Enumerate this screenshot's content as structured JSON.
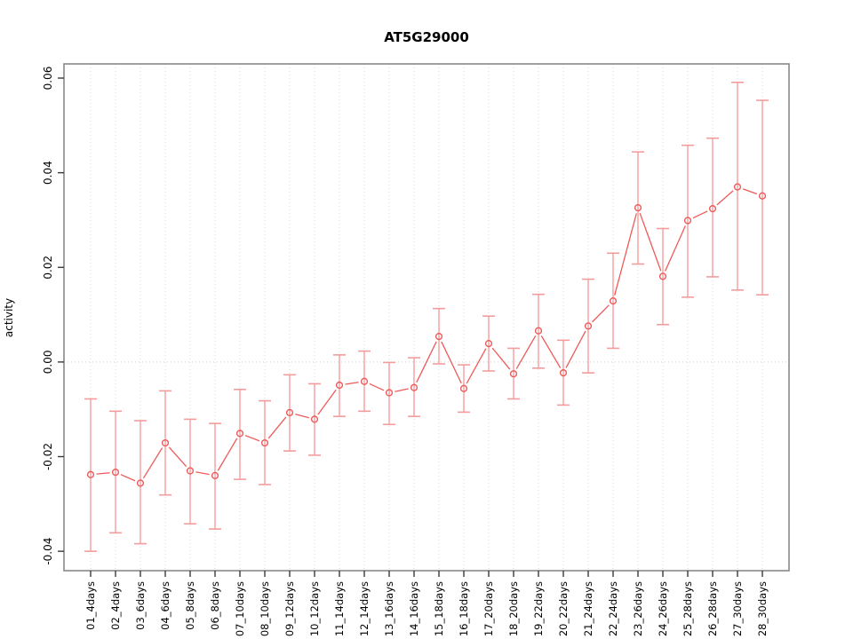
{
  "title": "AT5G29000",
  "chart_data": {
    "type": "line",
    "title": "AT5G29000",
    "xlabel": "",
    "ylabel": "activity",
    "legend": "none",
    "grid": "vertical dotted gridlines at each category; dotted horizontal line at y=0",
    "ylim": [
      -0.0441,
      0.063
    ],
    "yticks": [
      -0.04,
      -0.02,
      0,
      0.02,
      0.04,
      0.06
    ],
    "ytick_labels": [
      "-0.04",
      "-0.02",
      "0.00",
      "0.02",
      "0.04",
      "0.06"
    ],
    "categories": [
      "01_4days",
      "02_4days",
      "03_6days",
      "04_6days",
      "05_8days",
      "06_8days",
      "07_10days",
      "08_10days",
      "09_12days",
      "10_12days",
      "11_14days",
      "12_14days",
      "13_16days",
      "14_16days",
      "15_18days",
      "16_18days",
      "17_20days",
      "18_20days",
      "19_22days",
      "20_22days",
      "21_24days",
      "22_24days",
      "23_26days",
      "24_26days",
      "25_28days",
      "26_28days",
      "27_30days",
      "28_30days"
    ],
    "series": [
      {
        "name": "activity",
        "marker": "open-circle",
        "values": [
          -0.0238,
          -0.0233,
          -0.0256,
          -0.0171,
          -0.023,
          -0.024,
          -0.0151,
          -0.0171,
          -0.0107,
          -0.0121,
          -0.0049,
          -0.0041,
          -0.0065,
          -0.0054,
          0.0054,
          -0.0056,
          0.0039,
          -0.0025,
          0.0066,
          -0.0023,
          0.0076,
          0.0129,
          0.0326,
          0.0181,
          0.0299,
          0.0324,
          0.037,
          0.0351
        ],
        "error_high": [
          -0.0078,
          -0.0104,
          -0.0124,
          -0.0061,
          -0.0121,
          -0.013,
          -0.0058,
          -0.0082,
          -0.0027,
          -0.0046,
          0.0015,
          0.0023,
          -0.0001,
          0.0009,
          0.0113,
          -0.0006,
          0.0097,
          0.0029,
          0.0143,
          0.0046,
          0.0175,
          0.023,
          0.0444,
          0.0282,
          0.0458,
          0.0473,
          0.0591,
          0.0553
        ],
        "error_low": [
          -0.04,
          -0.0361,
          -0.0384,
          -0.0281,
          -0.0342,
          -0.0353,
          -0.0248,
          -0.0259,
          -0.0188,
          -0.0197,
          -0.0115,
          -0.0104,
          -0.0132,
          -0.0115,
          -0.0004,
          -0.0106,
          -0.0019,
          -0.0078,
          -0.0013,
          -0.0091,
          -0.0023,
          0.0029,
          0.0207,
          0.0079,
          0.0137,
          0.018,
          0.0152,
          0.0142
        ]
      }
    ],
    "colors": {
      "series": "#ee5a5a",
      "errorbar": "#f49c9c",
      "gridline": "#d9d9d9",
      "zero_line": "#d0d0d0",
      "box": "#888888",
      "tick": "#3a3a3a",
      "text": "#000000"
    }
  }
}
